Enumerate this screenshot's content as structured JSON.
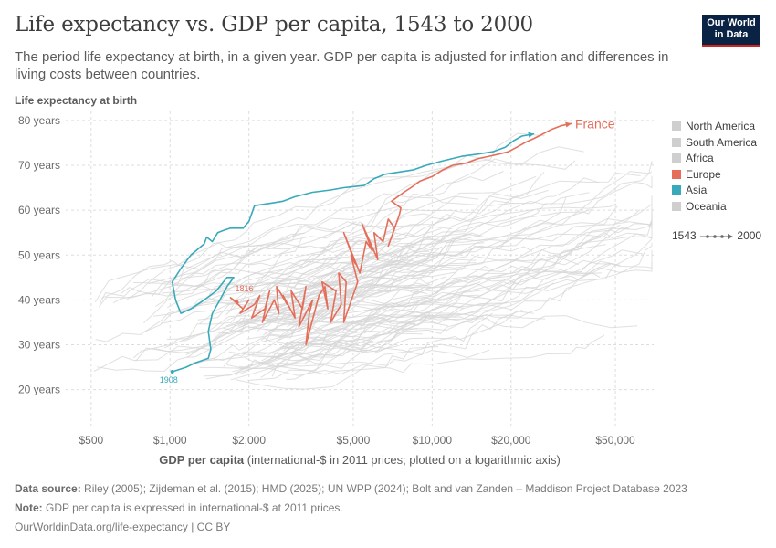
{
  "header": {
    "title": "Life expectancy vs. GDP per capita, 1543 to 2000",
    "subtitle": "The period life expectancy at birth, in a given year. GDP per capita is adjusted for inflation and differences in living costs between countries.",
    "logo_line1": "Our World",
    "logo_line2": "in Data"
  },
  "legend": {
    "items": [
      {
        "label": "North America",
        "color": "#cfcfcf"
      },
      {
        "label": "South America",
        "color": "#cfcfcf"
      },
      {
        "label": "Africa",
        "color": "#cfcfcf"
      },
      {
        "label": "Europe",
        "color": "#e56e5a"
      },
      {
        "label": "Asia",
        "color": "#38aaba"
      },
      {
        "label": "Oceania",
        "color": "#cfcfcf"
      }
    ],
    "time_start": "1543",
    "time_end": "2000"
  },
  "footer": {
    "source_label": "Data source:",
    "source_text": "Riley (2005); Zijdeman et al. (2015); HMD (2025); UN WPP (2024); Bolt and van Zanden – Maddison Project Database 2023",
    "note_label": "Note:",
    "note_text": "GDP per capita is expressed in international-$ at 2011 prices.",
    "url": "OurWorldinData.org/life-expectancy | CC BY"
  },
  "chart_data": {
    "type": "scatter",
    "title": "Life expectancy vs. GDP per capita, 1543 to 2000",
    "ylabel": "Life expectancy at birth",
    "xlabel_bold": "GDP per capita",
    "xlabel_rest": " (international-$ in 2011 prices; plotted on a logarithmic axis)",
    "x_scale": "log",
    "xlim": [
      400,
      70000
    ],
    "ylim": [
      12,
      82
    ],
    "x_ticks": [
      {
        "value": 500,
        "label": "$500"
      },
      {
        "value": 1000,
        "label": "$1,000"
      },
      {
        "value": 2000,
        "label": "$2,000"
      },
      {
        "value": 5000,
        "label": "$5,000"
      },
      {
        "value": 10000,
        "label": "$10,000"
      },
      {
        "value": 20000,
        "label": "$20,000"
      },
      {
        "value": 50000,
        "label": "$50,000"
      }
    ],
    "y_ticks": [
      {
        "value": 20,
        "label": "20 years"
      },
      {
        "value": 30,
        "label": "30 years"
      },
      {
        "value": 40,
        "label": "40 years"
      },
      {
        "value": 50,
        "label": "50 years"
      },
      {
        "value": 60,
        "label": "60 years"
      },
      {
        "value": 70,
        "label": "70 years"
      },
      {
        "value": 80,
        "label": "80 years"
      }
    ],
    "grid": true,
    "legend_position": "right",
    "series": [
      {
        "name": "France",
        "color": "#e56e5a",
        "start_label": "1816",
        "label_at_end": true,
        "points": [
          [
            1800,
            39.5
          ],
          [
            1700,
            40.5
          ],
          [
            1900,
            38
          ],
          [
            2000,
            40
          ],
          [
            1850,
            37
          ],
          [
            2100,
            39
          ],
          [
            2200,
            41
          ],
          [
            2050,
            36
          ],
          [
            2300,
            38
          ],
          [
            2400,
            42
          ],
          [
            2250,
            35
          ],
          [
            2500,
            40
          ],
          [
            2600,
            37
          ],
          [
            2550,
            43
          ],
          [
            2800,
            39
          ],
          [
            2700,
            41
          ],
          [
            3000,
            36
          ],
          [
            2900,
            42
          ],
          [
            3200,
            38
          ],
          [
            3300,
            43
          ],
          [
            3100,
            34
          ],
          [
            3500,
            40
          ],
          [
            3400,
            37
          ],
          [
            3300,
            30
          ],
          [
            3700,
            41
          ],
          [
            3900,
            43
          ],
          [
            4000,
            38
          ],
          [
            3800,
            44
          ],
          [
            4300,
            42
          ],
          [
            4100,
            35
          ],
          [
            4500,
            39
          ],
          [
            4400,
            46
          ],
          [
            4700,
            44
          ],
          [
            4600,
            35
          ],
          [
            5200,
            44
          ],
          [
            4900,
            50
          ],
          [
            5100,
            48
          ],
          [
            4600,
            55
          ],
          [
            5300,
            46
          ],
          [
            5600,
            53
          ],
          [
            5900,
            51
          ],
          [
            5400,
            57
          ],
          [
            6200,
            49
          ],
          [
            6000,
            55
          ],
          [
            6500,
            53
          ],
          [
            6800,
            58
          ],
          [
            7200,
            56
          ],
          [
            6800,
            52
          ],
          [
            7500,
            59
          ],
          [
            7600,
            60.5
          ],
          [
            7000,
            62
          ],
          [
            7800,
            64
          ],
          [
            8300,
            65
          ],
          [
            9000,
            66.5
          ],
          [
            10000,
            67.5
          ],
          [
            11000,
            69
          ],
          [
            12000,
            70
          ],
          [
            13500,
            70.5
          ],
          [
            15000,
            71.5
          ],
          [
            16500,
            72
          ],
          [
            18000,
            72.5
          ],
          [
            19500,
            73
          ],
          [
            21000,
            74
          ],
          [
            22500,
            75
          ],
          [
            24500,
            76
          ],
          [
            26500,
            77
          ],
          [
            28500,
            78
          ],
          [
            31000,
            78.8
          ],
          [
            34000,
            79.3
          ]
        ]
      },
      {
        "name": "",
        "color": "#38aaba",
        "start_label": "1908",
        "label_at_end": false,
        "points": [
          [
            1020,
            24
          ],
          [
            1150,
            25
          ],
          [
            1250,
            26
          ],
          [
            1400,
            27
          ],
          [
            1430,
            29
          ],
          [
            1400,
            33
          ],
          [
            1450,
            37
          ],
          [
            1550,
            40
          ],
          [
            1650,
            43
          ],
          [
            1750,
            45
          ],
          [
            1650,
            45
          ],
          [
            1500,
            42
          ],
          [
            1350,
            40
          ],
          [
            1200,
            38
          ],
          [
            1100,
            37
          ],
          [
            1050,
            40
          ],
          [
            1020,
            44
          ],
          [
            1100,
            47
          ],
          [
            1200,
            50
          ],
          [
            1350,
            52.5
          ],
          [
            1380,
            54
          ],
          [
            1450,
            53
          ],
          [
            1520,
            55
          ],
          [
            1600,
            55.5
          ],
          [
            1700,
            56
          ],
          [
            1900,
            56
          ],
          [
            2000,
            57.5
          ],
          [
            2100,
            61
          ],
          [
            2400,
            61.5
          ],
          [
            2700,
            62
          ],
          [
            3000,
            63
          ],
          [
            3500,
            64
          ],
          [
            4100,
            64.5
          ],
          [
            4600,
            65
          ],
          [
            5500,
            65.5
          ],
          [
            6000,
            67
          ],
          [
            6600,
            68
          ],
          [
            7500,
            68.5
          ],
          [
            8500,
            69
          ],
          [
            9500,
            70
          ],
          [
            11000,
            71
          ],
          [
            13000,
            72
          ],
          [
            15000,
            72.5
          ],
          [
            17000,
            73
          ],
          [
            19000,
            74
          ],
          [
            20500,
            75.5
          ],
          [
            22000,
            76.5
          ],
          [
            24500,
            77
          ]
        ]
      }
    ]
  }
}
